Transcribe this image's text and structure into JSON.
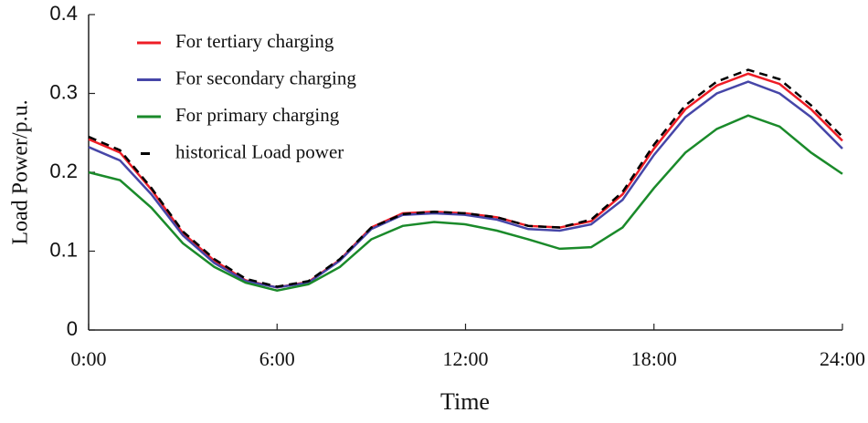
{
  "chart_data": {
    "type": "line",
    "x_label": "Time",
    "y_label": "Load Power/p.u.",
    "x": [
      0,
      1,
      2,
      3,
      4,
      5,
      6,
      7,
      8,
      9,
      10,
      11,
      12,
      13,
      14,
      15,
      16,
      17,
      18,
      19,
      20,
      21,
      22,
      23,
      24
    ],
    "xlim": [
      0,
      24
    ],
    "xticks": [
      {
        "value": 0,
        "label": "0:00"
      },
      {
        "value": 6,
        "label": "6:00"
      },
      {
        "value": 12,
        "label": "12:00"
      },
      {
        "value": 18,
        "label": "18:00"
      },
      {
        "value": 24,
        "label": "24:00"
      }
    ],
    "ylim": [
      0,
      0.4
    ],
    "yticks": [
      0,
      0.1,
      0.2,
      0.3,
      0.4
    ],
    "legend": "upper-left",
    "series": [
      {
        "name": "For tertiary charging",
        "color": "#ee1c25",
        "values": [
          0.242,
          0.225,
          0.178,
          0.123,
          0.088,
          0.063,
          0.054,
          0.061,
          0.089,
          0.13,
          0.148,
          0.15,
          0.148,
          0.143,
          0.132,
          0.13,
          0.138,
          0.172,
          0.23,
          0.28,
          0.31,
          0.325,
          0.312,
          0.28,
          0.24
        ]
      },
      {
        "name": "For secondary charging",
        "color": "#4646a8",
        "values": [
          0.232,
          0.215,
          0.172,
          0.12,
          0.085,
          0.062,
          0.054,
          0.06,
          0.088,
          0.128,
          0.146,
          0.148,
          0.146,
          0.14,
          0.128,
          0.126,
          0.134,
          0.165,
          0.222,
          0.27,
          0.3,
          0.315,
          0.3,
          0.27,
          0.23
        ]
      },
      {
        "name": "For primary charging",
        "color": "#1a8a2a",
        "values": [
          0.2,
          0.19,
          0.155,
          0.11,
          0.08,
          0.06,
          0.05,
          0.058,
          0.08,
          0.115,
          0.132,
          0.137,
          0.134,
          0.126,
          0.115,
          0.103,
          0.105,
          0.13,
          0.18,
          0.225,
          0.255,
          0.272,
          0.258,
          0.225,
          0.198
        ]
      },
      {
        "name": "historical Load power",
        "color": "#000000",
        "dash": "dashed",
        "values": [
          0.245,
          0.228,
          0.18,
          0.125,
          0.09,
          0.065,
          0.055,
          0.062,
          0.09,
          0.13,
          0.147,
          0.15,
          0.148,
          0.143,
          0.132,
          0.13,
          0.14,
          0.175,
          0.235,
          0.285,
          0.315,
          0.33,
          0.318,
          0.285,
          0.245
        ]
      }
    ]
  }
}
